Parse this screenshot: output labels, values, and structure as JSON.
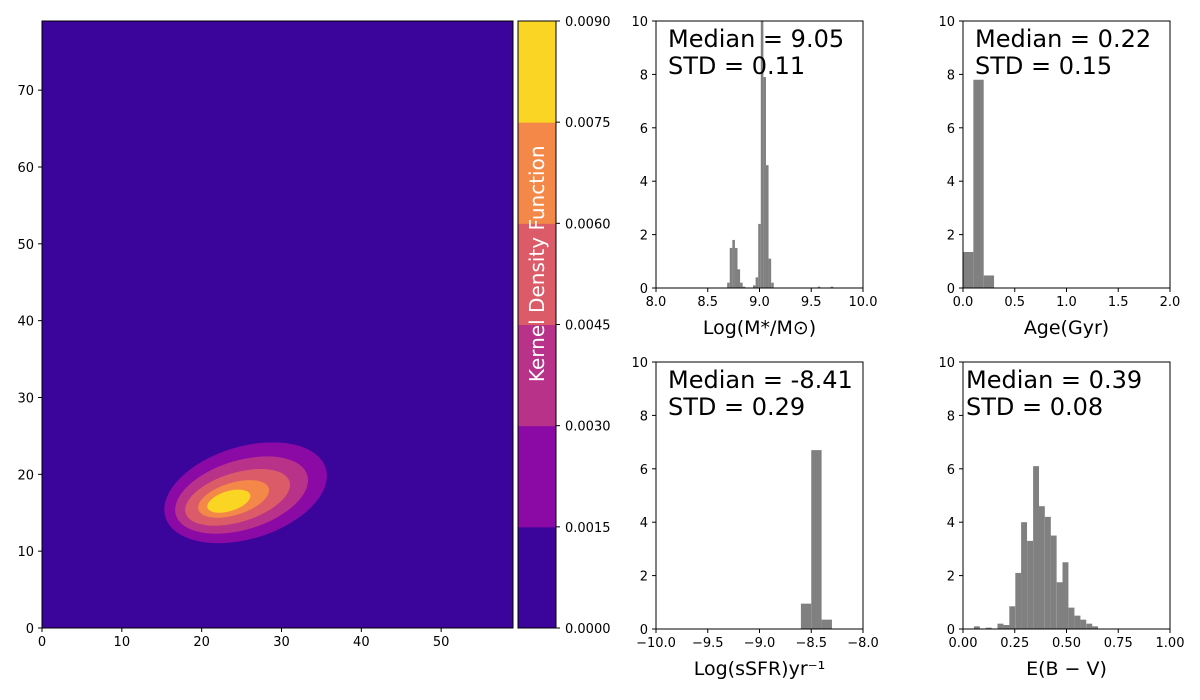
{
  "chart_data": [
    {
      "type": "heatmap",
      "subtype": "kde-contour",
      "xlim": [
        0,
        59
      ],
      "ylim": [
        0,
        79
      ],
      "x_ticks": [
        0,
        10,
        20,
        30,
        40,
        50
      ],
      "y_ticks": [
        0,
        10,
        20,
        30,
        40,
        50,
        60,
        70
      ],
      "background_color": "#3b049a",
      "contours": [
        {
          "level": 1,
          "color": "#8b0aa5",
          "center": [
            25.5,
            17.6
          ],
          "extent": [
            10.5,
            6.0
          ],
          "angle": -17
        },
        {
          "level": 2,
          "color": "#b83289",
          "center": [
            25.0,
            17.3
          ],
          "extent": [
            8.6,
            4.5
          ],
          "angle": -17
        },
        {
          "level": 3,
          "color": "#db5c68",
          "center": [
            24.5,
            17.0
          ],
          "extent": [
            6.8,
            3.2
          ],
          "angle": -17
        },
        {
          "level": 4,
          "color": "#f48849",
          "center": [
            24.0,
            16.8
          ],
          "extent": [
            4.6,
            2.1
          ],
          "angle": -17
        },
        {
          "level": 5,
          "color": "#fbd524",
          "center": [
            23.4,
            16.5
          ],
          "extent": [
            2.8,
            1.3
          ],
          "angle": -17
        }
      ],
      "colorbar": {
        "label": "Kernel Density Function",
        "range": [
          0,
          0.009
        ],
        "ticks": [
          "0.0000",
          "0.0015",
          "0.0030",
          "0.0045",
          "0.0060",
          "0.0075",
          "0.0090"
        ],
        "colors": [
          "#3b049a",
          "#8b0aa5",
          "#b83289",
          "#db5c68",
          "#f48849",
          "#fbd524"
        ]
      }
    },
    {
      "type": "bar",
      "subtype": "histogram",
      "xlabel": "Log(M*/M⊙)",
      "xlim": [
        8.0,
        10.0
      ],
      "ylim": [
        0,
        10
      ],
      "x_ticks": [
        "8.0",
        "8.5",
        "9.0",
        "9.5",
        "10.0"
      ],
      "y_ticks": [
        "0",
        "2",
        "4",
        "6",
        "8",
        "10"
      ],
      "bar_color": "#808080",
      "stats": {
        "median_label": "Median",
        "median_value": "9.05",
        "std_label": "STD",
        "std_value": "0.11"
      },
      "bin_width": 0.025,
      "bins": [
        {
          "x": 8.7,
          "y": 0.2
        },
        {
          "x": 8.725,
          "y": 1.5
        },
        {
          "x": 8.75,
          "y": 1.8
        },
        {
          "x": 8.775,
          "y": 1.5
        },
        {
          "x": 8.8,
          "y": 0.7
        },
        {
          "x": 8.825,
          "y": 0.2
        },
        {
          "x": 8.85,
          "y": 0.05
        },
        {
          "x": 8.95,
          "y": 0.1
        },
        {
          "x": 8.975,
          "y": 0.4
        },
        {
          "x": 9.0,
          "y": 2.4
        },
        {
          "x": 9.025,
          "y": 10.0
        },
        {
          "x": 9.05,
          "y": 7.9
        },
        {
          "x": 9.075,
          "y": 4.6
        },
        {
          "x": 9.1,
          "y": 1.1
        },
        {
          "x": 9.125,
          "y": 0.2
        },
        {
          "x": 9.575,
          "y": 0.05
        },
        {
          "x": 9.7,
          "y": 0.05
        }
      ]
    },
    {
      "type": "bar",
      "subtype": "histogram",
      "xlabel": "Age(Gyr)",
      "xlim": [
        0.0,
        2.0
      ],
      "ylim": [
        0,
        10
      ],
      "x_ticks": [
        "0.0",
        "0.5",
        "1.0",
        "1.5",
        "2.0"
      ],
      "y_ticks": [
        "0",
        "2",
        "4",
        "6",
        "8",
        "10"
      ],
      "bar_color": "#808080",
      "stats": {
        "median_label": "Median",
        "median_value": "0.22",
        "std_label": "STD",
        "std_value": "0.15"
      },
      "bin_width": 0.1,
      "bins": [
        {
          "x": 0.05,
          "y": 1.35
        },
        {
          "x": 0.15,
          "y": 7.8
        },
        {
          "x": 0.25,
          "y": 0.47
        }
      ]
    },
    {
      "type": "bar",
      "subtype": "histogram",
      "xlabel": "Log(sSFR)yr⁻¹",
      "xlim": [
        -10.0,
        -8.0
      ],
      "ylim": [
        0,
        10
      ],
      "x_ticks": [
        "−10.0",
        "−9.5",
        "−9.0",
        "−8.5",
        "−8.0"
      ],
      "y_ticks": [
        "0",
        "2",
        "4",
        "6",
        "8",
        "10"
      ],
      "bar_color": "#808080",
      "stats": {
        "median_label": "Median",
        "median_value": "-8.41",
        "std_label": "STD",
        "std_value": "0.29"
      },
      "bin_width": 0.1,
      "bins": [
        {
          "x": -8.55,
          "y": 0.95
        },
        {
          "x": -8.45,
          "y": 6.7
        },
        {
          "x": -8.35,
          "y": 0.35
        }
      ]
    },
    {
      "type": "bar",
      "subtype": "histogram",
      "xlabel": "E(B − V)",
      "xlim": [
        0.0,
        1.0
      ],
      "ylim": [
        0,
        10
      ],
      "x_ticks": [
        "0.00",
        "0.25",
        "0.50",
        "0.75",
        "1.00"
      ],
      "y_ticks": [
        "0",
        "2",
        "4",
        "6",
        "8",
        "10"
      ],
      "bar_color": "#808080",
      "stats": {
        "median_label": "Median",
        "median_value": "0.39",
        "std_label": "STD",
        "std_value": "0.08"
      },
      "bin_width": 0.0286,
      "bins": [
        {
          "x": 0.067,
          "y": 0.1
        },
        {
          "x": 0.124,
          "y": 0.05
        },
        {
          "x": 0.181,
          "y": 0.2
        },
        {
          "x": 0.21,
          "y": 0.15
        },
        {
          "x": 0.238,
          "y": 0.85
        },
        {
          "x": 0.267,
          "y": 2.1
        },
        {
          "x": 0.295,
          "y": 4.0
        },
        {
          "x": 0.324,
          "y": 3.3
        },
        {
          "x": 0.353,
          "y": 6.1
        },
        {
          "x": 0.381,
          "y": 4.6
        },
        {
          "x": 0.41,
          "y": 4.2
        },
        {
          "x": 0.438,
          "y": 3.5
        },
        {
          "x": 0.467,
          "y": 1.75
        },
        {
          "x": 0.495,
          "y": 2.5
        },
        {
          "x": 0.524,
          "y": 0.8
        },
        {
          "x": 0.553,
          "y": 0.5
        },
        {
          "x": 0.581,
          "y": 0.35
        },
        {
          "x": 0.61,
          "y": 0.2
        },
        {
          "x": 0.638,
          "y": 0.1
        }
      ]
    }
  ]
}
